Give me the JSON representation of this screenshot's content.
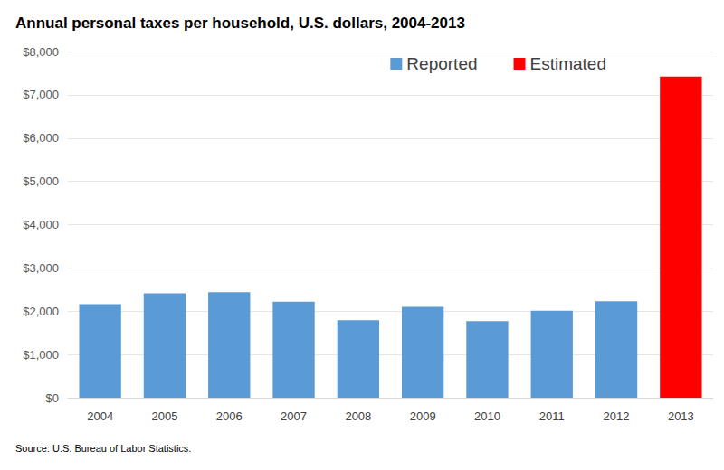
{
  "chart_data": {
    "type": "bar",
    "title": "Annual personal taxes per household, U.S. dollars, 2004-2013",
    "source": "Source: U.S. Bureau of Labor Statistics.",
    "categories": [
      "2004",
      "2005",
      "2006",
      "2007",
      "2008",
      "2009",
      "2010",
      "2011",
      "2012",
      "2013"
    ],
    "series": [
      {
        "name": "Reported",
        "color": "#5b9bd5",
        "values": [
          2160,
          2410,
          2440,
          2220,
          1790,
          2100,
          1770,
          2010,
          2230,
          null
        ]
      },
      {
        "name": "Estimated",
        "color": "#ff0000",
        "values": [
          null,
          null,
          null,
          null,
          null,
          null,
          null,
          null,
          null,
          7420
        ]
      }
    ],
    "ylim": [
      0,
      8000
    ],
    "yticks": [
      {
        "value": 0,
        "label": "$0"
      },
      {
        "value": 1000,
        "label": "$1,000"
      },
      {
        "value": 2000,
        "label": "$2,000"
      },
      {
        "value": 3000,
        "label": "$3,000"
      },
      {
        "value": 4000,
        "label": "$4,000"
      },
      {
        "value": 5000,
        "label": "$5,000"
      },
      {
        "value": 6000,
        "label": "$6,000"
      },
      {
        "value": 7000,
        "label": "$7,000"
      },
      {
        "value": 8000,
        "label": "$8,000"
      }
    ],
    "grid": true,
    "legend": "top-right"
  }
}
